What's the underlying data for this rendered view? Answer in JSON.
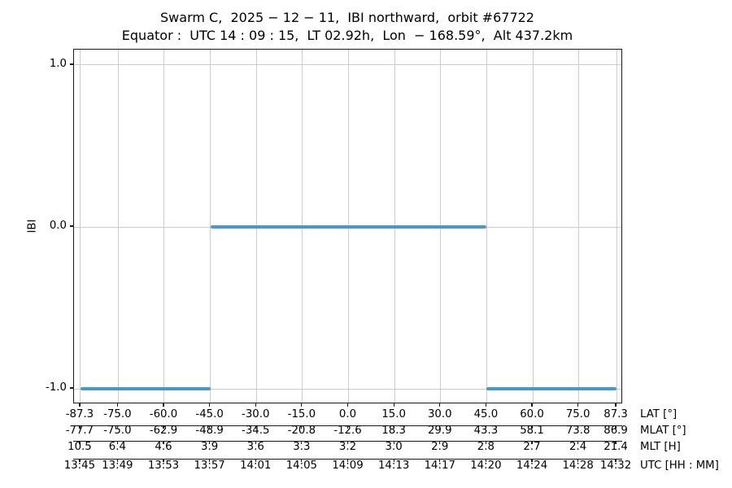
{
  "title": "Swarm C,  2025 − 12 − 11,  IBI northward,  orbit #67722",
  "subtitle": "Equator :  UTC 14 : 09 : 15,  LT 02.92h,  Lon  − 168.59°,  Alt 437.2km",
  "chart_data": {
    "type": "line",
    "title": "Swarm C, 2025-12-11, IBI northward, orbit #67722",
    "subtitle": "Equator: UTC 14:09:15, LT 02.92h, Lon -168.59deg, Alt 437.2km",
    "ylabel": "IBI",
    "ylim": [
      -1.095,
      1.095
    ],
    "xlim_lat": [
      -89.4,
      89.4
    ],
    "grid": true,
    "legend": "none",
    "yticks": [
      {
        "value": 1.0,
        "label": "1.0"
      },
      {
        "value": 0.0,
        "label": "0.0"
      },
      {
        "value": -1.0,
        "label": "-1.0"
      }
    ],
    "series": [
      {
        "name": "IBI",
        "segments": [
          {
            "lat_start": -87.3,
            "lat_end": -45.0,
            "value": -1.0
          },
          {
            "lat_start": -45.0,
            "lat_end": 45.0,
            "value": 0.0
          },
          {
            "lat_start": 45.0,
            "lat_end": 87.3,
            "value": -1.0
          }
        ]
      }
    ],
    "x_tick_positions_lat": [
      -87.3,
      -75.0,
      -60.0,
      -45.0,
      -30.0,
      -15.0,
      0.0,
      15.0,
      30.0,
      45.0,
      60.0,
      75.0,
      87.3
    ],
    "x_axis_rows": [
      {
        "label": "LAT [°]",
        "ticks": [
          "-87.3",
          "-75.0",
          "-60.0",
          "-45.0",
          "-30.0",
          "-15.0",
          "0.0",
          "15.0",
          "30.0",
          "45.0",
          "60.0",
          "75.0",
          "87.3"
        ]
      },
      {
        "label": "MLAT [°]",
        "ticks": [
          "-77.7",
          "-75.0",
          "-62.9",
          "-48.9",
          "-34.5",
          "-20.8",
          "-12.6",
          "18.3",
          "29.9",
          "43.3",
          "58.1",
          "73.8",
          "86.9"
        ]
      },
      {
        "label": "MLT [H]",
        "ticks": [
          "10.5",
          "6.4",
          "4.6",
          "3.9",
          "3.6",
          "3.3",
          "3.2",
          "3.0",
          "2.9",
          "2.8",
          "2.7",
          "2.4",
          "21.4"
        ]
      },
      {
        "label": "UTC [HH : MM]",
        "ticks": [
          "13:45",
          "13:49",
          "13:53",
          "13:57",
          "14:01",
          "14:05",
          "14:09",
          "14:13",
          "14:17",
          "14:20",
          "14:24",
          "14:28",
          "14:32"
        ]
      }
    ],
    "colors": {
      "line": "#4a98ca",
      "grid": "#cccccc",
      "spine": "#1a1a1a",
      "text": "#000000",
      "background": "#ffffff"
    }
  }
}
